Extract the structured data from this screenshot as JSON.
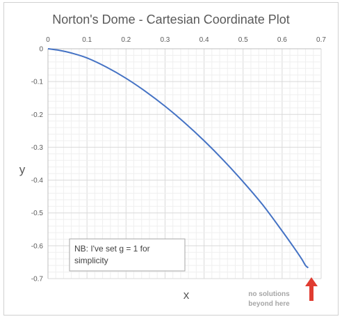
{
  "chart_data": {
    "type": "line",
    "title": "Norton's Dome - Cartesian Coordinate Plot",
    "xlabel": "x",
    "ylabel": "y",
    "xlim": [
      0,
      0.7
    ],
    "ylim": [
      -0.7,
      0
    ],
    "x_ticks": [
      "0",
      "0.1",
      "0.2",
      "0.3",
      "0.4",
      "0.5",
      "0.6",
      "0.7"
    ],
    "y_ticks": [
      "0",
      "-0.1",
      "-0.2",
      "-0.3",
      "-0.4",
      "-0.5",
      "-0.6",
      "-0.7"
    ],
    "x_axis_position": "top",
    "grid": true,
    "minor_grid": true,
    "series": [
      {
        "color": "#4472c4",
        "x": [
          0,
          0.03,
          0.06,
          0.1,
          0.15,
          0.2,
          0.25,
          0.3,
          0.35,
          0.4,
          0.45,
          0.5,
          0.55,
          0.6,
          0.63,
          0.65,
          0.66,
          0.667
        ],
        "y": [
          0,
          -0.005,
          -0.013,
          -0.028,
          -0.056,
          -0.09,
          -0.13,
          -0.175,
          -0.225,
          -0.28,
          -0.34,
          -0.405,
          -0.475,
          -0.555,
          -0.605,
          -0.64,
          -0.66,
          -0.667
        ]
      }
    ],
    "annotations": {
      "note": [
        "NB: I've set g = 1 for",
        "simplicity"
      ],
      "arrow_label": [
        "no solutions",
        "beyond here"
      ],
      "arrow_color": "#e03c31"
    }
  }
}
